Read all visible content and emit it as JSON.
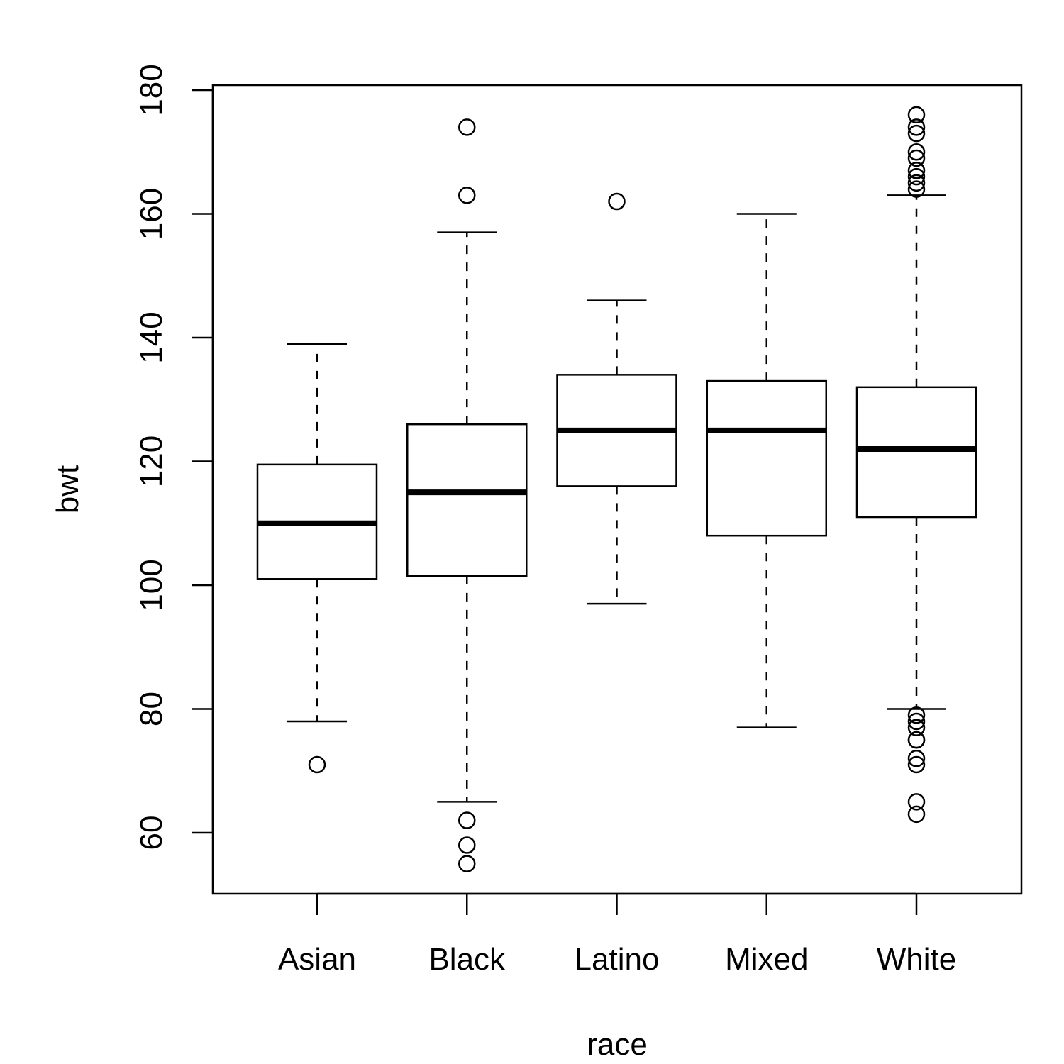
{
  "chart_data": {
    "type": "boxplot",
    "title": "",
    "xlabel": "race",
    "ylabel": "bwt",
    "ylim": [
      50,
      181
    ],
    "yticks": [
      60,
      80,
      100,
      120,
      140,
      160,
      180
    ],
    "grid": false,
    "colors": {
      "stroke": "#000000",
      "fill": "#ffffff"
    },
    "categories": [
      "Asian",
      "Black",
      "Latino",
      "Mixed",
      "White"
    ],
    "boxes": [
      {
        "category": "Asian",
        "whisker_low": 78,
        "q1": 101,
        "median": 110,
        "q3": 119.5,
        "whisker_high": 139,
        "outliers": [
          71
        ]
      },
      {
        "category": "Black",
        "whisker_low": 65,
        "q1": 101.5,
        "median": 115,
        "q3": 126,
        "whisker_high": 157,
        "outliers": [
          55,
          58,
          62,
          163,
          174
        ]
      },
      {
        "category": "Latino",
        "whisker_low": 97,
        "q1": 116,
        "median": 125,
        "q3": 134,
        "whisker_high": 146,
        "outliers": [
          162
        ]
      },
      {
        "category": "Mixed",
        "whisker_low": 77,
        "q1": 108,
        "median": 125,
        "q3": 133,
        "whisker_high": 160,
        "outliers": []
      },
      {
        "category": "White",
        "whisker_low": 80,
        "q1": 111,
        "median": 122,
        "q3": 132,
        "whisker_high": 163,
        "outliers": [
          63,
          65,
          71,
          72,
          75,
          75,
          77,
          78,
          79,
          164,
          165,
          166,
          167,
          169,
          170,
          173,
          174,
          176
        ]
      }
    ]
  }
}
